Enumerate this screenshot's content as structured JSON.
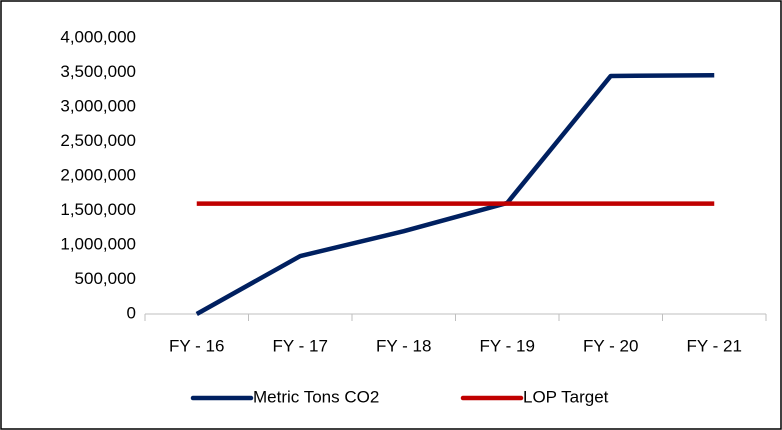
{
  "chart_data": {
    "type": "line",
    "categories": [
      "FY - 16",
      "FY - 17",
      "FY - 18",
      "FY - 19",
      "FY - 20",
      "FY - 21"
    ],
    "series": [
      {
        "name": "Metric Tons CO2",
        "color": "#002060",
        "values": [
          0,
          840000,
          1200000,
          1610000,
          3450000,
          3460000
        ]
      },
      {
        "name": "LOP Target",
        "color": "#c00000",
        "values": [
          1600000,
          1600000,
          1600000,
          1600000,
          1600000,
          1600000
        ]
      }
    ],
    "ylim": [
      0,
      4000000
    ],
    "yticks": [
      0,
      {
        "value": 500000,
        "label": "500,000"
      },
      {
        "value": 1000000,
        "label": "1,000,000"
      },
      {
        "value": 1500000,
        "label": "1,500,000"
      },
      {
        "value": 2000000,
        "label": "2,000,000"
      },
      {
        "value": 2500000,
        "label": "2,500,000"
      },
      {
        "value": 3000000,
        "label": "3,000,000"
      },
      {
        "value": 3500000,
        "label": "3,500,000"
      },
      {
        "value": 4000000,
        "label": "4,000,000"
      }
    ],
    "grid": false,
    "legend": "bottom"
  }
}
